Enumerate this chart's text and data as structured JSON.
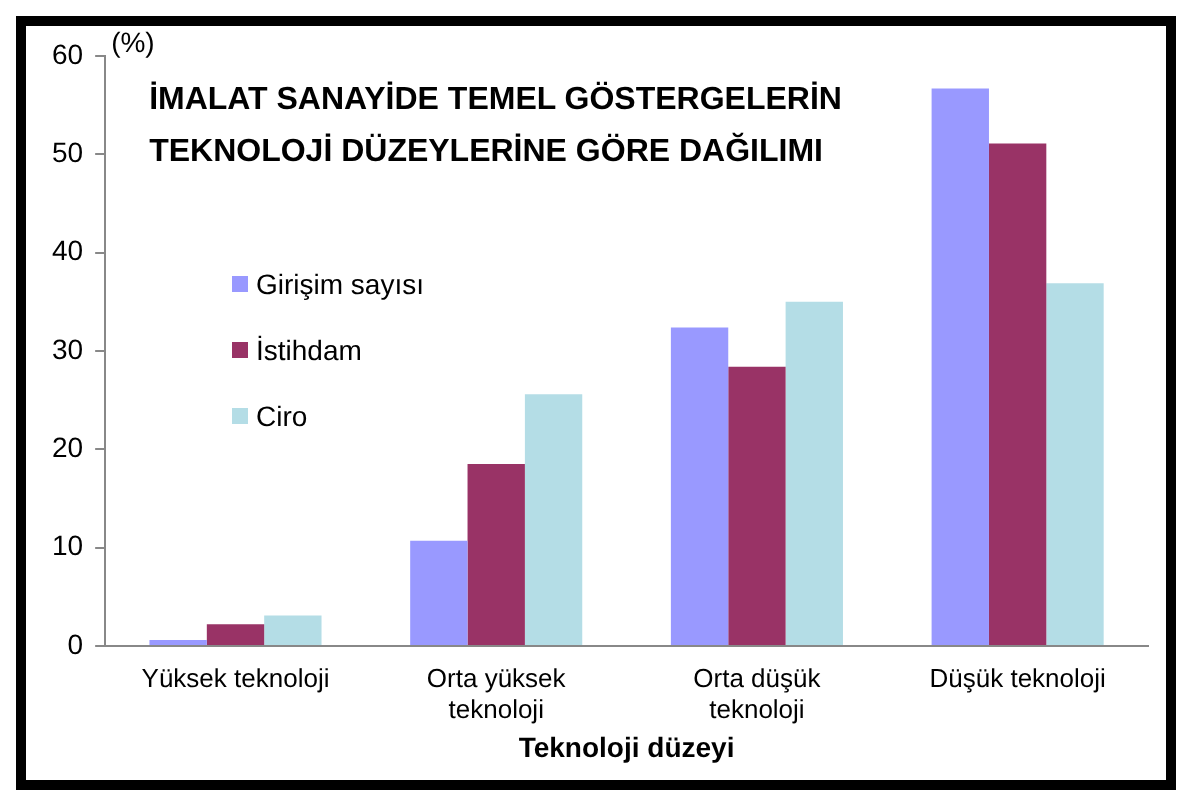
{
  "chart_data": {
    "type": "bar",
    "title": "İMALAT SANAYİDE TEMEL GÖSTERGELERİN\nTEKNOLOJİ DÜZEYLERİNE GÖRE DAĞILIMI",
    "xlabel": "Teknoloji düzeyi",
    "ylabel": "(%)",
    "categories": [
      "Yüksek teknoloji",
      "Orta yüksek\nteknoloji",
      "Orta düşük\nteknoloji",
      "Düşük teknoloji"
    ],
    "series": [
      {
        "name": "Girişim sayısı",
        "color": "#9999ff",
        "values": [
          0.6,
          10.7,
          32.4,
          56.7
        ]
      },
      {
        "name": "İstihdam",
        "color": "#993366",
        "values": [
          2.2,
          18.5,
          28.4,
          51.1
        ]
      },
      {
        "name": "Ciro",
        "color": "#b4dde6",
        "values": [
          3.1,
          25.6,
          35.0,
          36.9
        ]
      }
    ],
    "ylim": [
      0,
      60
    ],
    "yticks": [
      0,
      10,
      20,
      30,
      40,
      50,
      60
    ],
    "grid": false,
    "legend": "left"
  }
}
